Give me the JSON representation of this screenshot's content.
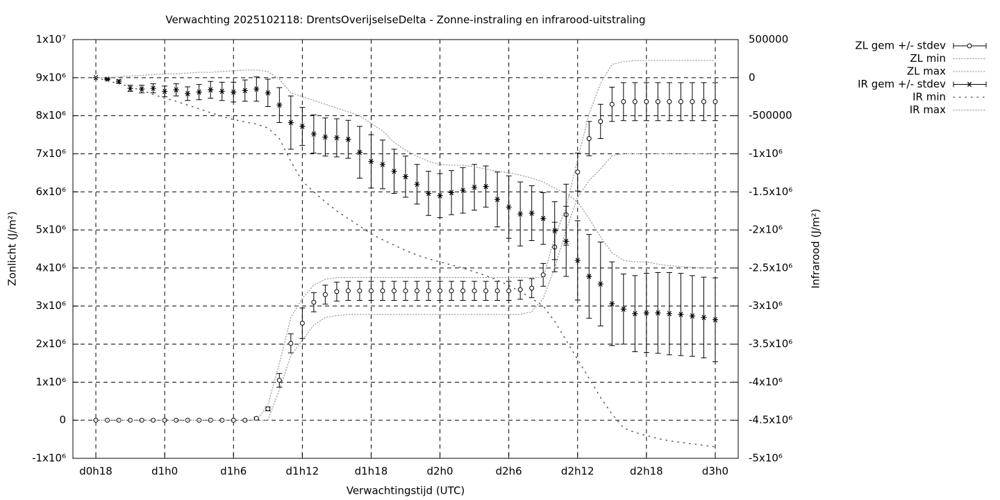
{
  "chart_data": {
    "type": "errorbar",
    "title": "Verwachting 2025102118: DrentsOverijselseDelta - Zonne-instraling en infrarood-uitstraling",
    "xlabel": "Verwachtingstijd (UTC)",
    "ylabel": "Zonlicht (J/m²)",
    "y2label": "Infrarood (J/m²)",
    "grid": true,
    "legend": "outside-top-right",
    "xlim": [
      16,
      74
    ],
    "xticks": [
      {
        "value": 18,
        "label": "d0h18"
      },
      {
        "value": 24,
        "label": "d1h0"
      },
      {
        "value": 30,
        "label": "d1h6"
      },
      {
        "value": 36,
        "label": "d1h12"
      },
      {
        "value": 42,
        "label": "d1h18"
      },
      {
        "value": 48,
        "label": "d2h0"
      },
      {
        "value": 54,
        "label": "d2h6"
      },
      {
        "value": 60,
        "label": "d2h12"
      },
      {
        "value": 66,
        "label": "d2h18"
      },
      {
        "value": 72,
        "label": "d3h0"
      }
    ],
    "ylim": [
      -1000000,
      10000000
    ],
    "yticks": [
      {
        "value": -1000000,
        "label": "-1x10⁶"
      },
      0,
      {
        "value": 1000000,
        "label": "1x10⁶"
      },
      {
        "value": 2000000,
        "label": "2x10⁶"
      },
      {
        "value": 3000000,
        "label": "3x10⁶"
      },
      {
        "value": 4000000,
        "label": "4x10⁶"
      },
      {
        "value": 5000000,
        "label": "5x10⁶"
      },
      {
        "value": 6000000,
        "label": "6x10⁶"
      },
      {
        "value": 7000000,
        "label": "7x10⁶"
      },
      {
        "value": 8000000,
        "label": "8x10⁶"
      },
      {
        "value": 9000000,
        "label": "9x10⁶"
      },
      {
        "value": 10000000,
        "label": "1x10⁷"
      }
    ],
    "y2lim": [
      -5000000,
      500000
    ],
    "y2ticks": [
      {
        "value": -5000000,
        "label": "-5x10⁶"
      },
      {
        "value": -4500000,
        "label": "-4.5x10⁶"
      },
      {
        "value": -4000000,
        "label": "-4x10⁶"
      },
      {
        "value": -3500000,
        "label": "-3.5x10⁶"
      },
      {
        "value": -3000000,
        "label": "-3x10⁶"
      },
      {
        "value": -2500000,
        "label": "-2.5x10⁶"
      },
      {
        "value": -2000000,
        "label": "-2x10⁶"
      },
      {
        "value": -1500000,
        "label": "-1.5x10⁶"
      },
      {
        "value": -1000000,
        "label": "-1x10⁶"
      },
      -500000,
      0,
      500000
    ],
    "x": [
      18,
      19,
      20,
      21,
      22,
      23,
      24,
      25,
      26,
      27,
      28,
      29,
      30,
      31,
      32,
      33,
      34,
      35,
      36,
      37,
      38,
      39,
      40,
      41,
      42,
      43,
      44,
      45,
      46,
      47,
      48,
      49,
      50,
      51,
      52,
      53,
      54,
      55,
      56,
      57,
      58,
      59,
      60,
      61,
      62,
      63,
      64,
      65,
      66,
      67,
      68,
      69,
      70,
      71,
      72
    ],
    "series": [
      {
        "name": "ZL gem +/- stdev",
        "color": "#000000",
        "marker": "circle",
        "axis": "y",
        "values": [
          0,
          0,
          0,
          0,
          0,
          0,
          0,
          0,
          0,
          0,
          0,
          0,
          0,
          0,
          50000,
          300000,
          1050000,
          2020000,
          2550000,
          3100000,
          3300000,
          3380000,
          3400000,
          3400000,
          3400000,
          3400000,
          3400000,
          3400000,
          3400000,
          3400000,
          3400000,
          3400000,
          3400000,
          3400000,
          3400000,
          3400000,
          3400000,
          3430000,
          3470000,
          3820000,
          4550000,
          5400000,
          6520000,
          7400000,
          7850000,
          8300000,
          8370000,
          8370000,
          8370000,
          8370000,
          8370000,
          8370000,
          8370000,
          8370000,
          8370000
        ],
        "errors": [
          0,
          0,
          0,
          0,
          0,
          0,
          0,
          0,
          0,
          0,
          0,
          0,
          0,
          0,
          30000,
          50000,
          180000,
          250000,
          400000,
          250000,
          250000,
          250000,
          250000,
          250000,
          250000,
          250000,
          250000,
          250000,
          250000,
          250000,
          250000,
          250000,
          250000,
          250000,
          250000,
          250000,
          250000,
          250000,
          250000,
          300000,
          650000,
          800000,
          500000,
          450000,
          450000,
          450000,
          500000,
          500000,
          500000,
          500000,
          500000,
          500000,
          500000,
          500000,
          500000
        ]
      },
      {
        "name": "ZL min",
        "color": "#999999",
        "linestyle": "dotted",
        "axis": "y",
        "values": [
          0,
          0,
          0,
          0,
          0,
          0,
          0,
          0,
          0,
          0,
          0,
          0,
          0,
          0,
          0,
          0,
          800000,
          1700000,
          2100000,
          2500000,
          2700000,
          2750000,
          2780000,
          2780000,
          2780000,
          2780000,
          2780000,
          2780000,
          2780000,
          2780000,
          2780000,
          2780000,
          2780000,
          2780000,
          2780000,
          2780000,
          2780000,
          2780000,
          2850000,
          3200000,
          4000000,
          5000000,
          5850000,
          6300000,
          6600000,
          6950000,
          7000000,
          7000000,
          7000000,
          7000000,
          7000000,
          7000000,
          7000000,
          7000000,
          7000000
        ]
      },
      {
        "name": "ZL max",
        "color": "#999999",
        "linestyle": "dotted",
        "axis": "y",
        "values": [
          0,
          0,
          0,
          0,
          0,
          0,
          0,
          0,
          0,
          0,
          0,
          0,
          0,
          0,
          0,
          400000,
          1500000,
          2700000,
          3200000,
          3550000,
          3700000,
          3750000,
          3750000,
          3750000,
          3750000,
          3750000,
          3750000,
          3750000,
          3750000,
          3750000,
          3750000,
          3750000,
          3750000,
          3750000,
          3750000,
          3750000,
          3750000,
          3750000,
          3750000,
          3750000,
          4800000,
          5600000,
          6850000,
          8050000,
          8850000,
          9350000,
          9420000,
          9450000,
          9450000,
          9450000,
          9450000,
          9450000,
          9450000,
          9450000,
          9450000
        ]
      },
      {
        "name": "IR gem +/- stdev",
        "color": "#000000",
        "marker": "star",
        "axis": "y2",
        "values": [
          0,
          -20000,
          -50000,
          -140000,
          -150000,
          -140000,
          -180000,
          -160000,
          -210000,
          -190000,
          -160000,
          -180000,
          -190000,
          -170000,
          -150000,
          -200000,
          -360000,
          -590000,
          -640000,
          -740000,
          -780000,
          -790000,
          -810000,
          -980000,
          -1100000,
          -1140000,
          -1230000,
          -1300000,
          -1400000,
          -1520000,
          -1550000,
          -1510000,
          -1480000,
          -1440000,
          -1430000,
          -1600000,
          -1700000,
          -1790000,
          -1780000,
          -1850000,
          -2010000,
          -2150000,
          -2400000,
          -2610000,
          -2710000,
          -2970000,
          -3040000,
          -3100000,
          -3090000,
          -3090000,
          -3100000,
          -3110000,
          -3130000,
          -3150000,
          -3180000
        ],
        "errors": [
          0,
          10000,
          20000,
          40000,
          50000,
          60000,
          70000,
          80000,
          90000,
          100000,
          110000,
          120000,
          130000,
          140000,
          160000,
          180000,
          230000,
          350000,
          250000,
          250000,
          250000,
          250000,
          250000,
          340000,
          350000,
          320000,
          290000,
          270000,
          260000,
          290000,
          290000,
          290000,
          300000,
          300000,
          270000,
          360000,
          410000,
          420000,
          360000,
          340000,
          380000,
          460000,
          520000,
          550000,
          550000,
          550000,
          460000,
          500000,
          520000,
          530000,
          540000,
          540000,
          530000,
          530000,
          550000
        ]
      },
      {
        "name": "IR min",
        "color": "#444444",
        "linestyle": "loose-dotted",
        "axis": "y2",
        "values": [
          0,
          -40000,
          -80000,
          -120000,
          -170000,
          -220000,
          -270000,
          -310000,
          -360000,
          -410000,
          -460000,
          -510000,
          -550000,
          -580000,
          -610000,
          -660000,
          -800000,
          -1100000,
          -1360000,
          -1500000,
          -1630000,
          -1750000,
          -1850000,
          -1950000,
          -2050000,
          -2130000,
          -2200000,
          -2270000,
          -2330000,
          -2380000,
          -2420000,
          -2460000,
          -2500000,
          -2550000,
          -2600000,
          -2660000,
          -2730000,
          -2810000,
          -2900000,
          -3000000,
          -3200000,
          -3450000,
          -3700000,
          -3950000,
          -4200000,
          -4420000,
          -4600000,
          -4660000,
          -4700000,
          -4740000,
          -4770000,
          -4790000,
          -4810000,
          -4830000,
          -4850000
        ]
      },
      {
        "name": "IR max",
        "color": "#999999",
        "linestyle": "dotted",
        "axis": "y2",
        "values": [
          0,
          0,
          10000,
          20000,
          30000,
          40000,
          50000,
          50000,
          60000,
          70000,
          70000,
          80000,
          90000,
          100000,
          100000,
          80000,
          -20000,
          -200000,
          -250000,
          -300000,
          -350000,
          -400000,
          -450000,
          -500000,
          -600000,
          -700000,
          -850000,
          -950000,
          -1030000,
          -1100000,
          -1140000,
          -1150000,
          -1150000,
          -1170000,
          -1200000,
          -1230000,
          -1250000,
          -1280000,
          -1320000,
          -1370000,
          -1450000,
          -1520000,
          -1630000,
          -1850000,
          -2090000,
          -2300000,
          -2400000,
          -2420000,
          -2420000,
          -2450000,
          -2470000,
          -2480000,
          -2490000,
          -2500000,
          -2500000
        ]
      }
    ]
  }
}
